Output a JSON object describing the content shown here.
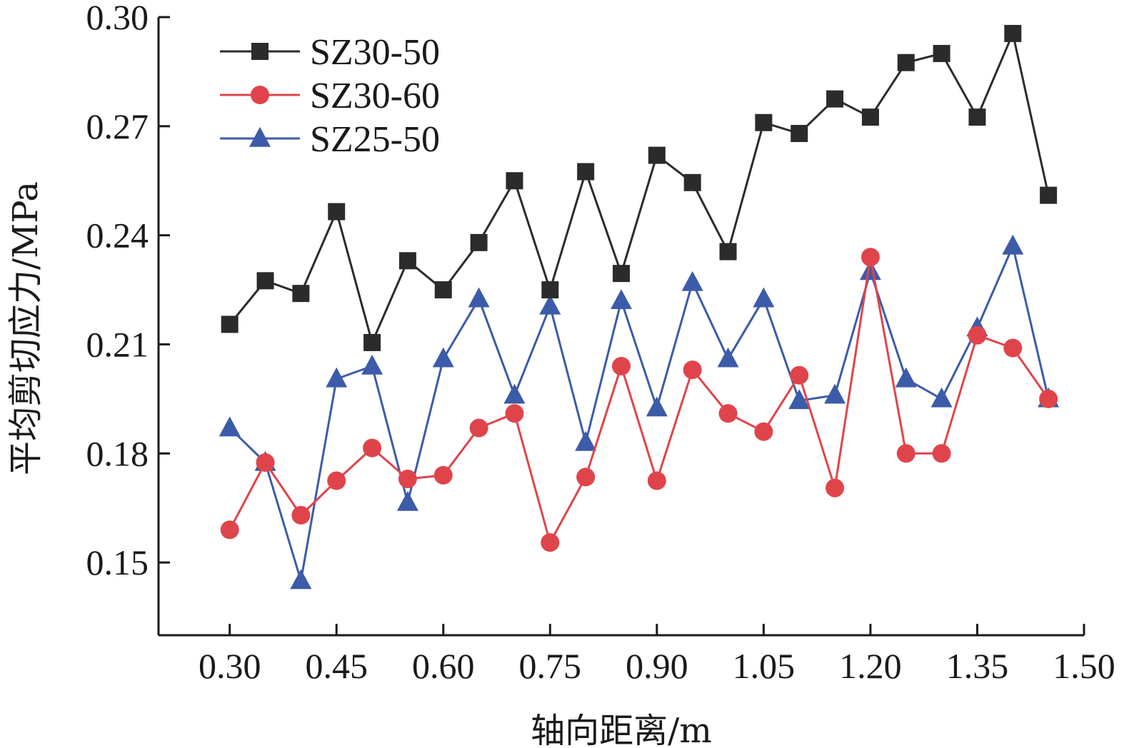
{
  "chart_data": {
    "type": "line",
    "xlabel": "轴向距离/m",
    "ylabel": "平均剪切应力/MPa",
    "xlim": [
      0.2,
      1.5
    ],
    "ylim": [
      0.13,
      0.3
    ],
    "xticks": [
      "0.30",
      "0.45",
      "0.60",
      "0.75",
      "0.90",
      "1.05",
      "1.20",
      "1.35",
      "1.50"
    ],
    "yticks": [
      "0.15",
      "0.18",
      "0.21",
      "0.24",
      "0.27",
      "0.30"
    ],
    "grid": false,
    "legend_position": "top-left",
    "x": [
      0.3,
      0.35,
      0.4,
      0.45,
      0.5,
      0.55,
      0.6,
      0.65,
      0.7,
      0.75,
      0.8,
      0.85,
      0.9,
      0.95,
      1.0,
      1.05,
      1.1,
      1.15,
      1.2,
      1.25,
      1.3,
      1.35,
      1.4,
      1.45
    ],
    "series": [
      {
        "name": "SZ30-50",
        "color": "#2b2b2b",
        "marker": "square",
        "values": [
          0.2155,
          0.2275,
          0.224,
          0.2465,
          0.2105,
          0.233,
          0.225,
          0.238,
          0.255,
          0.225,
          0.2575,
          0.2295,
          0.262,
          0.2545,
          0.2355,
          0.271,
          0.268,
          0.2775,
          0.2725,
          0.2875,
          0.29,
          0.2725,
          0.2955,
          0.251
        ]
      },
      {
        "name": "SZ30-60",
        "color": "#e0444b",
        "marker": "circle",
        "values": [
          0.159,
          0.1775,
          0.163,
          0.1725,
          0.1815,
          0.173,
          0.174,
          0.187,
          0.191,
          0.1555,
          0.1735,
          0.204,
          0.1725,
          0.203,
          0.191,
          0.186,
          0.2015,
          0.1705,
          0.234,
          0.18,
          0.18,
          0.2125,
          0.209,
          0.195
        ]
      },
      {
        "name": "SZ25-50",
        "color": "#3c5ba8",
        "marker": "triangle",
        "values": [
          0.187,
          0.1775,
          0.145,
          0.2005,
          0.204,
          0.1665,
          0.206,
          0.2225,
          0.196,
          0.2205,
          0.183,
          0.222,
          0.1925,
          0.227,
          0.206,
          0.2225,
          0.1945,
          0.196,
          0.23,
          0.2005,
          0.195,
          0.2145,
          0.237,
          0.195
        ]
      }
    ]
  }
}
